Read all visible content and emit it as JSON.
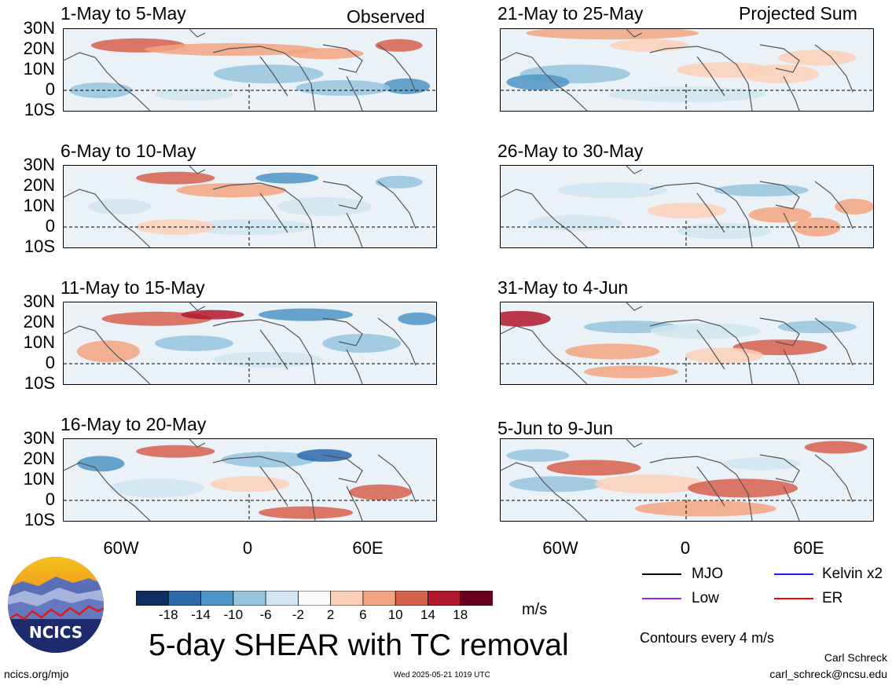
{
  "header": {
    "left_label": "Observed",
    "right_label": "Projected Sum"
  },
  "panels": [
    {
      "title": "1-May to 5-May"
    },
    {
      "title": "6-May to 10-May"
    },
    {
      "title": "11-May to 15-May"
    },
    {
      "title": "16-May to 20-May"
    },
    {
      "title": "21-May to 25-May"
    },
    {
      "title": "26-May to 30-May"
    },
    {
      "title": "31-May to 4-Jun"
    },
    {
      "title": "5-Jun to 9-Jun"
    }
  ],
  "y_axis_labels": [
    "30N",
    "20N",
    "10N",
    "0",
    "10S"
  ],
  "x_axis_labels": [
    "60W",
    "0",
    "60E"
  ],
  "colorbar": {
    "ticks": [
      "-18",
      "-14",
      "-10",
      "-6",
      "-2",
      "2",
      "6",
      "10",
      "14",
      "18"
    ],
    "colors": [
      "#0d2e5e",
      "#2c6aab",
      "#4d95c6",
      "#97c5df",
      "#d1e5f0",
      "#f9f9f9",
      "#fbd0b9",
      "#f3a481",
      "#d6604d",
      "#b2182b",
      "#67001f"
    ],
    "units": "m/s"
  },
  "title": "5-day SHEAR with TC removal",
  "legend": {
    "items": [
      {
        "label": "MJO",
        "color": "#000000"
      },
      {
        "label": "Kelvin x2",
        "color": "#1a1aff"
      },
      {
        "label": "Low",
        "color": "#a020f0"
      },
      {
        "label": "ER",
        "color": "#ff0000"
      }
    ],
    "contour_note": "Contours every 4 m/s"
  },
  "logo": {
    "text": "NCICS"
  },
  "footer": {
    "url": "ncics.org/mjo",
    "timestamp": "Wed 2025-05-21 1019 UTC",
    "author": "Carl Schreck",
    "email": "carl_schreck@ncsu.edu"
  }
}
